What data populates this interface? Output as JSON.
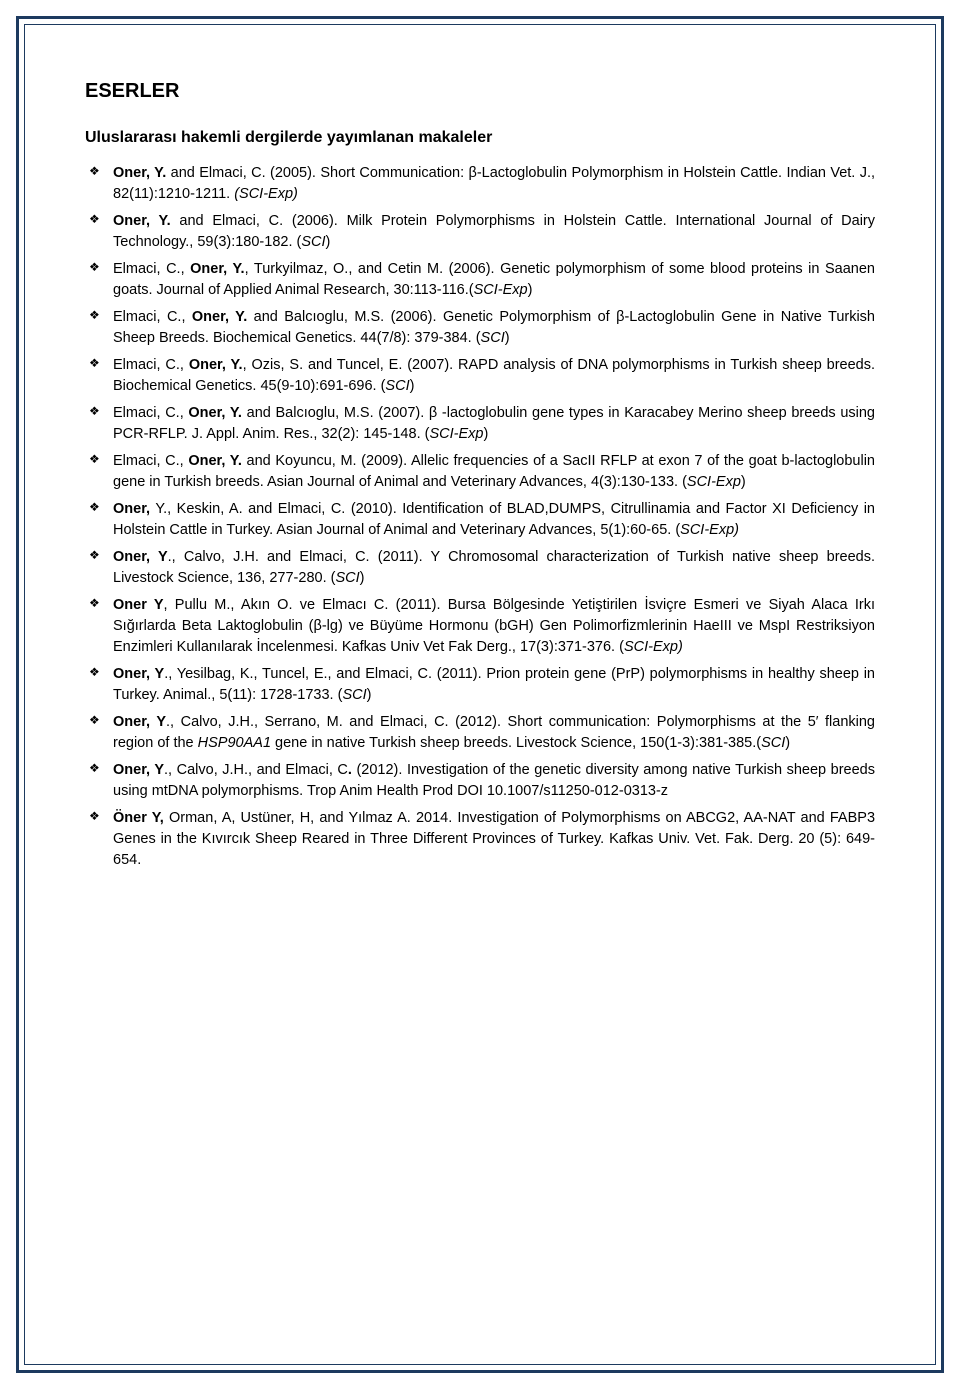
{
  "sectionTitle": "ESERLER",
  "subsectionTitle": "Uluslararası hakemli dergilerde yayımlanan makaleler",
  "refs": [
    {
      "parts": [
        {
          "t": "Oner, Y.",
          "c": "b"
        },
        {
          "t": " and Elmaci, C. (2005). Short Communication: β-Lactoglobulin Polymorphism in Holstein Cattle. Indian Vet. J., 82(11):1210-1211. "
        },
        {
          "t": "(SCI-Exp)",
          "c": "i"
        }
      ]
    },
    {
      "parts": [
        {
          "t": "Oner, Y.",
          "c": "b"
        },
        {
          "t": " and Elmaci, C. (2006). Milk Protein Polymorphisms in Holstein Cattle. International Journal of Dairy Technology., 59(3):180-182. ("
        },
        {
          "t": "SCI",
          "c": "i"
        },
        {
          "t": ")"
        }
      ]
    },
    {
      "parts": [
        {
          "t": "Elmaci, C., "
        },
        {
          "t": "Oner, Y.",
          "c": "b"
        },
        {
          "t": ", Turkyilmaz, O., and Cetin M. (2006). Genetic polymorphism of some blood proteins in Saanen goats. Journal of Applied Animal Research, 30:113-116.("
        },
        {
          "t": "SCI-Exp",
          "c": "i"
        },
        {
          "t": ")"
        }
      ]
    },
    {
      "parts": [
        {
          "t": "Elmaci, C., "
        },
        {
          "t": "Oner, Y.",
          "c": "b"
        },
        {
          "t": " and Balcıoglu, M.S. (2006). Genetic Polymorphism of β-Lactoglobulin Gene in Native Turkish Sheep Breeds. Biochemical Genetics. 44(7/8): 379-384. ("
        },
        {
          "t": "SCI",
          "c": "i"
        },
        {
          "t": ")"
        }
      ]
    },
    {
      "parts": [
        {
          "t": "Elmaci, C., "
        },
        {
          "t": "Oner, Y.",
          "c": "b"
        },
        {
          "t": ", Ozis, S. and Tuncel, E. (2007). RAPD analysis of DNA polymorphisms in Turkish sheep breeds. Biochemical Genetics. 45(9-10):691-696. ("
        },
        {
          "t": "SCI",
          "c": "i"
        },
        {
          "t": ")"
        }
      ]
    },
    {
      "parts": [
        {
          "t": "Elmaci, C., "
        },
        {
          "t": "Oner, Y.",
          "c": "b"
        },
        {
          "t": " and Balcıoglu, M.S. (2007). β -lactoglobulin gene types in Karacabey Merino sheep breeds using PCR-RFLP. J. Appl. Anim. Res., 32(2): 145-148. ("
        },
        {
          "t": "SCI-Exp",
          "c": "i"
        },
        {
          "t": ")"
        }
      ]
    },
    {
      "parts": [
        {
          "t": "Elmaci, C., "
        },
        {
          "t": "Oner, Y.",
          "c": "b"
        },
        {
          "t": " and Koyuncu, M. (2009). Allelic frequencies of a SacII RFLP at exon 7 of the goat b-lactoglobulin gene in Turkish breeds. Asian Journal of Animal and Veterinary Advances, 4(3):130-133. ("
        },
        {
          "t": "SCI-Exp",
          "c": "i"
        },
        {
          "t": ")"
        }
      ]
    },
    {
      "parts": [
        {
          "t": "Oner,",
          "c": "b"
        },
        {
          "t": " Y., Keskin, A. and Elmaci, C. (2010). Identification of BLAD,DUMPS, Citrullinamia and Factor XI Deficiency in Holstein Cattle in Turkey. Asian Journal of Animal and Veterinary Advances, 5(1):60-65. ("
        },
        {
          "t": "SCI-Exp)",
          "c": "i"
        }
      ]
    },
    {
      "parts": [
        {
          "t": "Oner, Y",
          "c": "b"
        },
        {
          "t": "., Calvo, J.H. and Elmaci, C. (2011). Y Chromosomal characterization of Turkish native sheep breeds. Livestock Science, 136, 277-280. ("
        },
        {
          "t": "SCI",
          "c": "i"
        },
        {
          "t": ")"
        }
      ]
    },
    {
      "parts": [
        {
          "t": "Oner Y",
          "c": "b"
        },
        {
          "t": ", Pullu M., Akın O. ve Elmacı C. (2011). Bursa Bölgesinde Yetiştirilen İsviçre Esmeri ve Siyah Alaca Irkı Sığırlarda Beta Laktoglobulin (β-lg) ve Büyüme Hormonu (bGH) Gen Polimorfizmlerinin HaeIII ve MspI Restriksiyon Enzimleri Kullanılarak İncelenmesi. Kafkas Univ Vet Fak Derg., 17(3):371-376. ("
        },
        {
          "t": "SCI-Exp)",
          "c": "i"
        }
      ]
    },
    {
      "parts": [
        {
          "t": "Oner, Y",
          "c": "b"
        },
        {
          "t": "., Yesilbag, K., Tuncel, E., and Elmaci, C. (2011). Prion protein gene (PrP) polymorphisms in healthy sheep in Turkey. Animal., 5(11): 1728-1733. ("
        },
        {
          "t": "SCI",
          "c": "i"
        },
        {
          "t": ")"
        }
      ]
    },
    {
      "parts": [
        {
          "t": "Oner, Y",
          "c": "b"
        },
        {
          "t": "., Calvo, J.H., Serrano, M. and Elmaci, C. (2012). Short communication: Polymorphisms at the 5′ flanking region of the "
        },
        {
          "t": "HSP90AA1",
          "c": "i"
        },
        {
          "t": " gene in native Turkish sheep breeds. Livestock Science, 150(1-3):381-385.("
        },
        {
          "t": "SCI",
          "c": "i"
        },
        {
          "t": ")"
        }
      ]
    },
    {
      "parts": [
        {
          "t": "Oner, Y",
          "c": "b"
        },
        {
          "t": "., Calvo, J.H., and Elmaci, C"
        },
        {
          "t": ".",
          "c": "b"
        },
        {
          "t": " (2012). Investigation of the genetic diversity among native Turkish sheep breeds using mtDNA polymorphisms. Trop Anim Health Prod DOI 10.1007/s11250-012-0313-z"
        }
      ]
    },
    {
      "parts": [
        {
          "t": "Öner Y,",
          "c": "b"
        },
        {
          "t": " Orman, A, Ustüner, H,  and  Yılmaz A. 2014. Investigation of Polymorphisms on ABCG2, AA-NAT and FABP3 Genes in the Kıvırcık Sheep Reared in Three Different Provinces of Turkey. Kafkas Univ. Vet. Fak. Derg. 20 (5): 649-654."
        }
      ]
    }
  ],
  "style": {
    "page_bg": "#ffffff",
    "border_color": "#1d3a5f",
    "outer_border_width": 3,
    "inner_border_width": 1.5,
    "title_fontsize": 20,
    "subtitle_fontsize": 16,
    "body_fontsize": 14.5,
    "line_height": 1.45,
    "bullet_glyph": "❖",
    "text_color": "#000000",
    "font_family": "Arial"
  }
}
